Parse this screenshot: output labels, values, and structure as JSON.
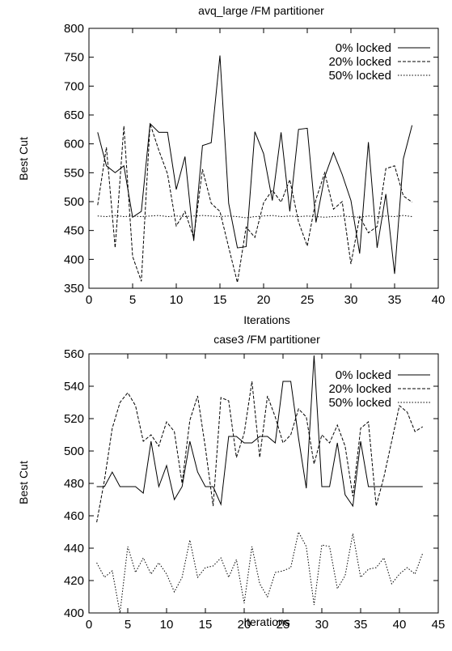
{
  "chart_data": [
    {
      "type": "line",
      "title": "avq_large /FM partitioner",
      "xlabel": "Iterations",
      "ylabel": "Best Cut",
      "xlim": [
        0,
        40
      ],
      "ylim": [
        350,
        800
      ],
      "xticks": [
        "0",
        "5",
        "10",
        "15",
        "20",
        "25",
        "30",
        "35",
        "40"
      ],
      "yticks": [
        "350",
        "400",
        "450",
        "500",
        "550",
        "600",
        "650",
        "700",
        "750",
        "800"
      ],
      "legend_position": "top-right",
      "grid": false,
      "series": [
        {
          "name": "0% locked",
          "style": "solid",
          "x": [
            1,
            2,
            3,
            4,
            5,
            6,
            7,
            8,
            9,
            10,
            11,
            12,
            13,
            14,
            15,
            16,
            17,
            18,
            19,
            20,
            21,
            22,
            23,
            24,
            25,
            26,
            27,
            28,
            29,
            30,
            31,
            32,
            33,
            34,
            35,
            36,
            37
          ],
          "values": [
            620,
            562,
            550,
            562,
            473,
            483,
            635,
            620,
            620,
            521,
            578,
            432,
            597,
            602,
            753,
            497,
            420,
            422,
            621,
            583,
            502,
            620,
            483,
            625,
            627,
            464,
            543,
            585,
            547,
            502,
            410,
            603,
            420,
            513,
            375,
            574,
            632
          ]
        },
        {
          "name": "20% locked",
          "style": "dashed",
          "x": [
            1,
            2,
            3,
            4,
            5,
            6,
            7,
            8,
            9,
            10,
            11,
            12,
            13,
            14,
            15,
            16,
            17,
            18,
            19,
            20,
            21,
            22,
            23,
            24,
            25,
            26,
            27,
            28,
            29,
            30,
            31,
            32,
            33,
            34,
            35,
            36,
            37
          ],
          "values": [
            494,
            594,
            420,
            631,
            405,
            362,
            635,
            589,
            548,
            458,
            483,
            437,
            556,
            497,
            483,
            421,
            360,
            456,
            438,
            498,
            520,
            499,
            538,
            465,
            423,
            504,
            550,
            487,
            500,
            392,
            474,
            446,
            457,
            557,
            562,
            510,
            499
          ]
        },
        {
          "name": "50% locked",
          "style": "dotted",
          "x": [
            1,
            2,
            3,
            4,
            5,
            6,
            7,
            8,
            9,
            10,
            11,
            12,
            13,
            14,
            15,
            16,
            17,
            18,
            19,
            20,
            21,
            22,
            23,
            24,
            25,
            26,
            27,
            28,
            29,
            30,
            31,
            32,
            33,
            34,
            35,
            36,
            37
          ],
          "values": [
            475,
            474,
            476,
            474,
            475,
            474,
            475,
            476,
            474,
            475,
            474,
            475,
            476,
            475,
            474,
            475,
            474,
            472,
            474,
            475,
            476,
            474,
            475,
            474,
            475,
            474,
            473,
            474,
            475,
            474,
            473,
            475,
            474,
            475,
            474,
            476,
            474
          ]
        }
      ]
    },
    {
      "type": "line",
      "title": "case3 /FM partitioner",
      "xlabel": "Iterations",
      "ylabel": "Best Cut",
      "xlim": [
        0,
        45
      ],
      "ylim": [
        400,
        560
      ],
      "xticks": [
        "0",
        "5",
        "10",
        "15",
        "20",
        "25",
        "30",
        "35",
        "40",
        "45"
      ],
      "yticks": [
        "400",
        "420",
        "440",
        "460",
        "480",
        "500",
        "520",
        "540",
        "560"
      ],
      "legend_position": "top-right",
      "grid": false,
      "series": [
        {
          "name": "0% locked",
          "style": "solid",
          "x": [
            1,
            2,
            3,
            4,
            5,
            6,
            7,
            8,
            9,
            10,
            11,
            12,
            13,
            14,
            15,
            16,
            17,
            18,
            19,
            20,
            21,
            22,
            23,
            24,
            25,
            26,
            27,
            28,
            29,
            30,
            31,
            32,
            33,
            34,
            35,
            36,
            37,
            38,
            39,
            40,
            41,
            42,
            43
          ],
          "values": [
            478,
            478,
            487,
            478,
            478,
            478,
            474,
            506,
            478,
            491,
            470,
            478,
            506,
            487,
            478,
            478,
            467,
            509,
            509,
            505,
            505,
            509,
            509,
            505,
            543,
            543,
            508,
            477,
            559,
            478,
            478,
            505,
            473,
            466,
            506,
            478,
            478,
            478,
            478,
            478,
            478,
            478,
            478
          ]
        },
        {
          "name": "20% locked",
          "style": "dashed",
          "x": [
            1,
            2,
            3,
            4,
            5,
            6,
            7,
            8,
            9,
            10,
            11,
            12,
            13,
            14,
            15,
            16,
            17,
            18,
            19,
            20,
            21,
            22,
            23,
            24,
            25,
            26,
            27,
            28,
            29,
            30,
            31,
            32,
            33,
            34,
            35,
            36,
            37,
            38,
            39,
            40,
            41,
            42,
            43
          ],
          "values": [
            456,
            482,
            514,
            530,
            536,
            528,
            506,
            510,
            503,
            518,
            512,
            480,
            519,
            534,
            502,
            466,
            533,
            531,
            496,
            511,
            543,
            496,
            534,
            521,
            505,
            510,
            526,
            521,
            492,
            510,
            505,
            516,
            503,
            472,
            514,
            518,
            466,
            484,
            506,
            528,
            524,
            512,
            515
          ]
        },
        {
          "name": "50% locked",
          "style": "dotted",
          "x": [
            1,
            2,
            3,
            4,
            5,
            6,
            7,
            8,
            9,
            10,
            11,
            12,
            13,
            14,
            15,
            16,
            17,
            18,
            19,
            20,
            21,
            22,
            23,
            24,
            25,
            26,
            27,
            28,
            29,
            30,
            31,
            32,
            33,
            34,
            35,
            36,
            37,
            38,
            39,
            40,
            41,
            42,
            43
          ],
          "values": [
            431,
            422,
            426,
            400,
            441,
            425,
            434,
            424,
            431,
            424,
            413,
            422,
            445,
            422,
            428,
            429,
            434,
            422,
            433,
            406,
            441,
            418,
            410,
            425,
            426,
            428,
            450,
            441,
            405,
            442,
            441,
            415,
            423,
            449,
            422,
            427,
            428,
            434,
            418,
            424,
            428,
            424,
            437
          ]
        }
      ]
    }
  ]
}
